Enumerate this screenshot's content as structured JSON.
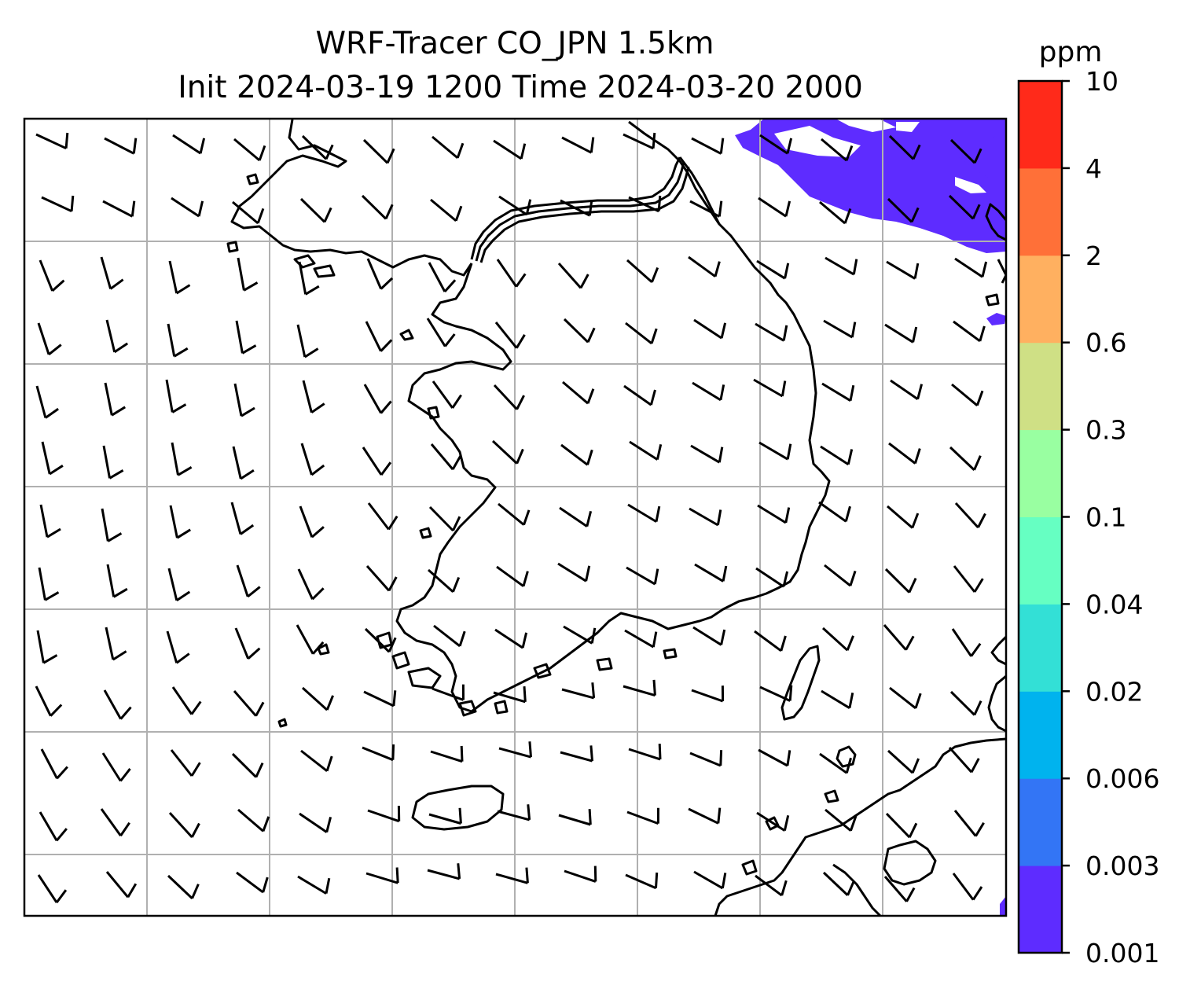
{
  "title": {
    "line1": "WRF-Tracer CO_JPN 1.5km",
    "line2": "Init 2024-03-19 1200 Time 2024-03-20 2000"
  },
  "colorbar": {
    "unit": "ppm",
    "levels": [
      "0.001",
      "0.003",
      "0.006",
      "0.02",
      "0.04",
      "0.1",
      "0.3",
      "0.6",
      "2",
      "4",
      "10"
    ],
    "colors": [
      "#5e2cff",
      "#3375f5",
      "#00b3ee",
      "#33e0d6",
      "#66ffc2",
      "#99ffa1",
      "#cfe085",
      "#ffb060",
      "#ff7038",
      "#ff2a1a"
    ]
  },
  "map": {
    "concentration_bin_shown": "0.001",
    "gridlines": true,
    "wind_barbs": true,
    "coastlines": true
  }
}
